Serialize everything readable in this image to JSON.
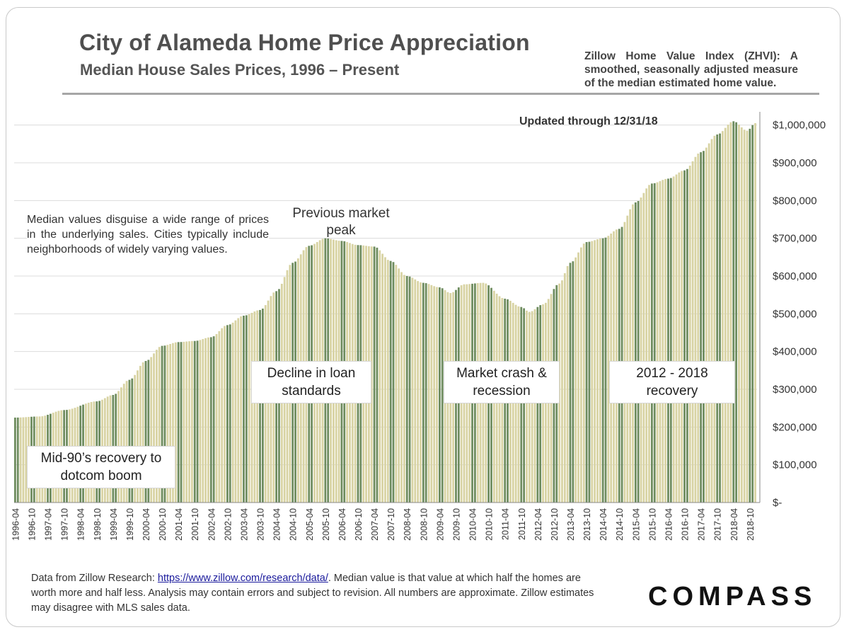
{
  "header": {
    "title": "City of Alameda Home Price Appreciation",
    "subtitle": "Median House Sales Prices, 1996 – Present",
    "zhvi_note": "Zillow Home Value Index (ZHVI): A smoothed, seasonally adjusted measure of the median estimated home value."
  },
  "annotations": {
    "updated": "Updated through 12/31/18",
    "median_note": "Median values disguise a wide range of prices in the underlying sales. Cities typically include neighborhoods of widely varying values.",
    "previous_peak": "Previous market peak",
    "mid90s": "Mid-90’s recovery to dotcom boom",
    "decline": "Decline in loan standards",
    "crash": "Market crash & recession",
    "recovery": "2012 - 2018 recovery"
  },
  "footer": {
    "text_before_link": "Data from Zillow Research: ",
    "link_text": "https://www.zillow.com/research/data/",
    "text_after_link": ". Median value is that value at which half the homes are worth more and half less. Analysis may contain errors and subject to revision. All numbers are approximate. Zillow estimates may disagree with MLS sales data."
  },
  "logo": {
    "text": "COMPASS"
  },
  "colors": {
    "bar_light": "#d8d3a3",
    "bar_dark": "#6e8c5e",
    "grid": "#dcdcdc",
    "text": "#333333"
  },
  "chart_data": {
    "type": "bar",
    "x_ticks": [
      "1996-04",
      "1996-10",
      "1997-04",
      "1997-10",
      "1998-04",
      "1998-10",
      "1999-04",
      "1999-10",
      "2000-04",
      "2000-10",
      "2001-04",
      "2001-10",
      "2002-04",
      "2002-10",
      "2003-04",
      "2003-10",
      "2004-04",
      "2004-10",
      "2005-04",
      "2005-10",
      "2006-04",
      "2006-10",
      "2007-04",
      "2007-10",
      "2008-04",
      "2008-10",
      "2009-04",
      "2009-10",
      "2010-04",
      "2010-10",
      "2011-04",
      "2011-10",
      "2012-04",
      "2012-10",
      "2013-04",
      "2013-10",
      "2014-04",
      "2014-10",
      "2015-04",
      "2015-10",
      "2016-04",
      "2016-10",
      "2017-04",
      "2017-10",
      "2018-04",
      "2018-10"
    ],
    "y_ticks": [
      0,
      100000,
      200000,
      300000,
      400000,
      500000,
      600000,
      700000,
      800000,
      900000,
      1000000
    ],
    "y_tick_labels": [
      "$-",
      "$100,000",
      "$200,000",
      "$300,000",
      "$400,000",
      "$500,000",
      "$600,000",
      "$700,000",
      "$800,000",
      "$900,000",
      "$1,000,000"
    ],
    "ylim": [
      0,
      1050000
    ],
    "start_month": "1996-04",
    "end_month": "2018-12",
    "keypoints": [
      [
        "1996-04",
        225000
      ],
      [
        "1997-01",
        228000
      ],
      [
        "1997-10",
        245000
      ],
      [
        "1998-10",
        268000
      ],
      [
        "1999-04",
        285000
      ],
      [
        "1999-10",
        325000
      ],
      [
        "2000-04",
        375000
      ],
      [
        "2000-10",
        415000
      ],
      [
        "2001-04",
        425000
      ],
      [
        "2001-10",
        428000
      ],
      [
        "2002-04",
        438000
      ],
      [
        "2002-10",
        470000
      ],
      [
        "2003-04",
        495000
      ],
      [
        "2003-10",
        510000
      ],
      [
        "2004-04",
        560000
      ],
      [
        "2004-10",
        635000
      ],
      [
        "2005-04",
        680000
      ],
      [
        "2005-10",
        700000
      ],
      [
        "2006-04",
        693000
      ],
      [
        "2006-10",
        682000
      ],
      [
        "2007-04",
        678000
      ],
      [
        "2007-10",
        640000
      ],
      [
        "2008-04",
        600000
      ],
      [
        "2008-10",
        582000
      ],
      [
        "2009-04",
        570000
      ],
      [
        "2009-08",
        555000
      ],
      [
        "2010-01",
        578000
      ],
      [
        "2010-08",
        582000
      ],
      [
        "2011-04",
        540000
      ],
      [
        "2011-10",
        518000
      ],
      [
        "2012-01",
        505000
      ],
      [
        "2012-06",
        525000
      ],
      [
        "2012-12",
        580000
      ],
      [
        "2013-04",
        635000
      ],
      [
        "2013-10",
        690000
      ],
      [
        "2014-04",
        700000
      ],
      [
        "2014-10",
        725000
      ],
      [
        "2015-04",
        795000
      ],
      [
        "2015-10",
        845000
      ],
      [
        "2016-04",
        858000
      ],
      [
        "2016-10",
        880000
      ],
      [
        "2017-04",
        928000
      ],
      [
        "2017-10",
        975000
      ],
      [
        "2018-04",
        1010000
      ],
      [
        "2018-09",
        985000
      ],
      [
        "2018-12",
        1005000
      ]
    ]
  }
}
